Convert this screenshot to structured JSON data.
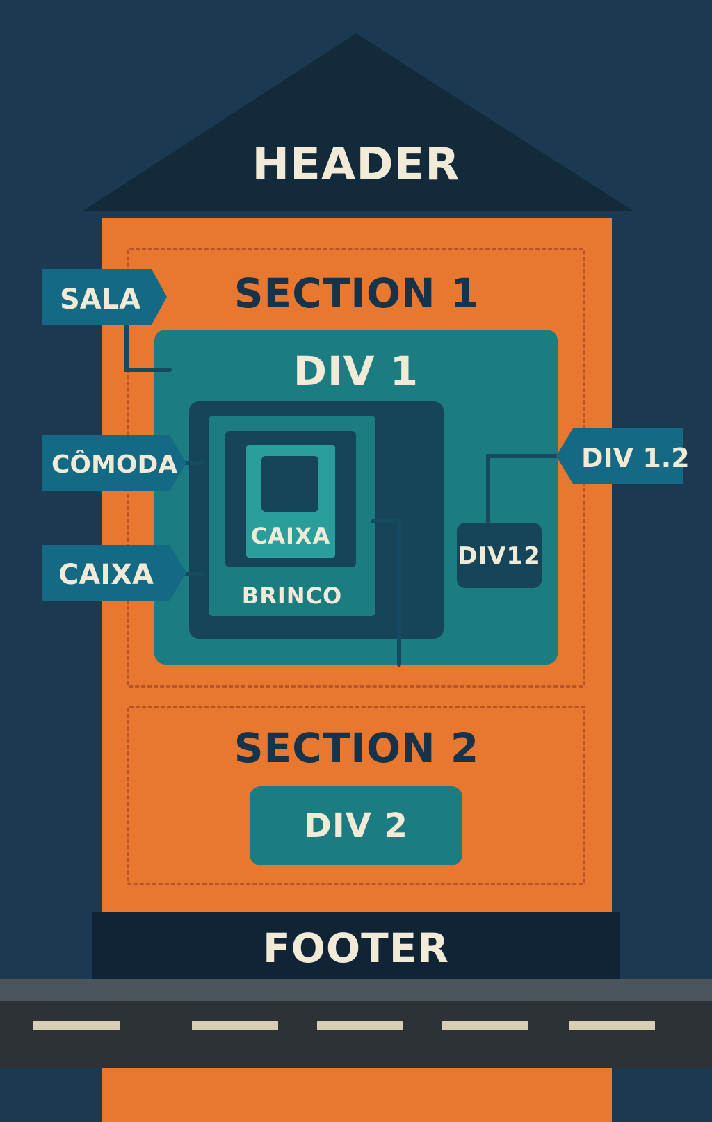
{
  "header": {
    "label": "HEADER"
  },
  "section1": {
    "title": "SECTION 1"
  },
  "section2": {
    "title": "SECTION 2"
  },
  "div1": {
    "title": "DIV 1"
  },
  "inner": {
    "caixa_label": "CAIXA",
    "brinco_label": "BRINCO"
  },
  "div12": {
    "label": "DIV12"
  },
  "div2": {
    "label": "DIV 2"
  },
  "footer": {
    "label": "FOOTER"
  },
  "tags": {
    "sala": "SALA",
    "comoda": "CÔMODA",
    "caixa": "CAIXA",
    "div1_2": "DIV 1.2"
  },
  "colors": {
    "background": "#1b3a52",
    "roof": "#122a3a",
    "building": "#e8772f",
    "teal": "#1b7c82",
    "dark_teal": "#16455a",
    "tag": "#146a84",
    "text_light": "#f1ead6",
    "text_dark": "#16334a"
  }
}
